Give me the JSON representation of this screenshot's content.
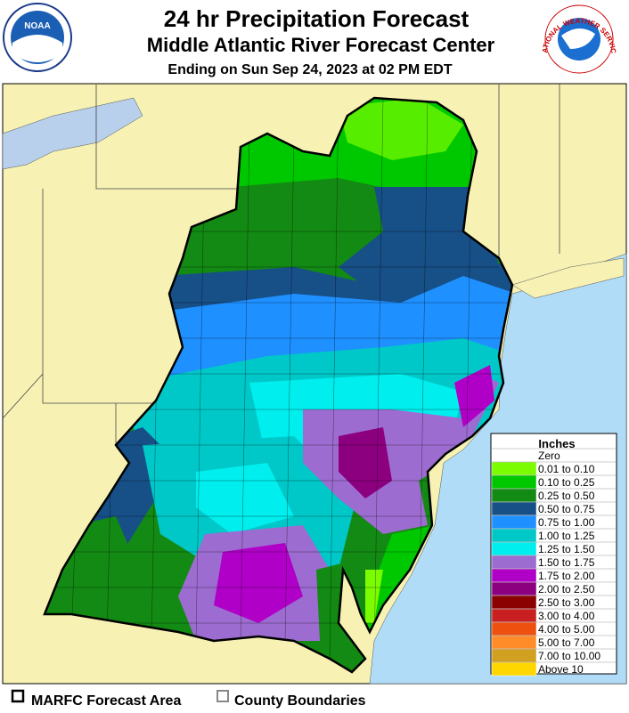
{
  "header": {
    "title": "24 hr Precipitation Forecast",
    "subtitle": "Middle Atlantic River Forecast Center",
    "valid": "Ending on Sun Sep 24, 2023 at 02 PM EDT"
  },
  "logos": {
    "noaa": "NOAA",
    "nws": "NATIONAL WEATHER SERVICE"
  },
  "legend": {
    "title": "Inches",
    "entries": [
      {
        "label": "Zero",
        "color": "#ffffff"
      },
      {
        "label": "0.01 to 0.10",
        "color": "#7cfc00"
      },
      {
        "label": "0.10 to 0.25",
        "color": "#00c800"
      },
      {
        "label": "0.25 to 0.50",
        "color": "#138a13"
      },
      {
        "label": "0.50 to 0.75",
        "color": "#174f87"
      },
      {
        "label": "0.75 to 1.00",
        "color": "#1e90ff"
      },
      {
        "label": "1.00 to 1.25",
        "color": "#00c8c8"
      },
      {
        "label": "1.25 to 1.50",
        "color": "#00eeee"
      },
      {
        "label": "1.50 to 1.75",
        "color": "#9c6cd0"
      },
      {
        "label": "1.75 to 2.00",
        "color": "#b000c8"
      },
      {
        "label": "2.00 to 2.50",
        "color": "#8c0080"
      },
      {
        "label": "2.50 to 3.00",
        "color": "#8b0000"
      },
      {
        "label": "3.00 to 4.00",
        "color": "#c82020"
      },
      {
        "label": "4.00 to 5.00",
        "color": "#ee5010"
      },
      {
        "label": "5.00 to 7.00",
        "color": "#ff8c28"
      },
      {
        "label": "7.00 to 10.00",
        "color": "#d2a020"
      },
      {
        "label": "Above 10",
        "color": "#ffd700"
      }
    ]
  },
  "footer": {
    "forecast_area": "MARFC Forecast Area",
    "county_boundaries": "County Boundaries"
  }
}
